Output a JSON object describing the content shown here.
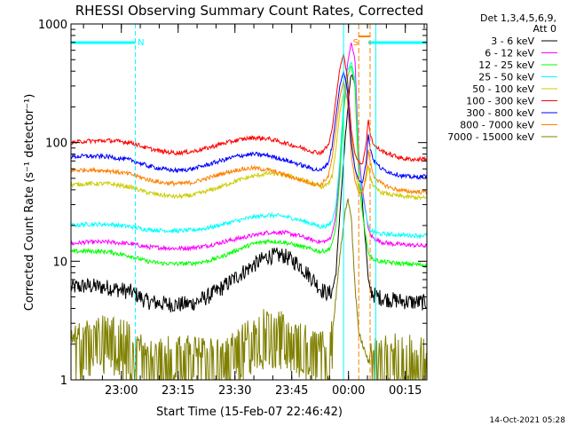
{
  "chart_data": {
    "type": "line",
    "title": "RHESSI Observing Summary Count Rates, Corrected",
    "xlabel": "Start Time (15-Feb-07 22:46:42)",
    "ylabel": "Corrected Count Rate (s⁻¹ detector⁻¹)",
    "y_scale": "log",
    "ylim": [
      1,
      1000
    ],
    "y_ticks": [
      {
        "value": 1,
        "label": "1"
      },
      {
        "value": 10,
        "label": "10"
      },
      {
        "value": 100,
        "label": "100"
      },
      {
        "value": 1000,
        "label": "1000"
      }
    ],
    "x_units": "minutes after 22:46:42",
    "xlim": [
      0,
      94
    ],
    "x_ticks": [
      {
        "value": 13.3,
        "label": "23:00"
      },
      {
        "value": 28.3,
        "label": "23:15"
      },
      {
        "value": 43.3,
        "label": "23:30"
      },
      {
        "value": 58.3,
        "label": "23:45"
      },
      {
        "value": 73.3,
        "label": "00:00"
      },
      {
        "value": 88.3,
        "label": "00:15"
      }
    ],
    "grid": false,
    "legend_position": "top-right, outside plot",
    "legend_header": [
      "Det 1,3,4,5,6,9,",
      "Att 0"
    ],
    "annotations": [
      {
        "text": "N",
        "x": 18.5,
        "type": "night interval boundary"
      },
      {
        "text": "S",
        "x": 75.2,
        "type": "SAA boundary"
      }
    ],
    "night_intervals": [
      [
        0,
        17
      ],
      [
        78.5,
        94
      ]
    ],
    "saa_markers": [
      76,
      79
    ],
    "series": [
      {
        "name": "3 - 6 keV",
        "color": "#000000",
        "x": [
          0,
          4,
          10,
          16,
          20,
          24,
          28,
          32,
          36,
          40,
          44,
          48,
          52,
          56,
          60,
          64,
          66,
          68,
          69,
          70,
          71,
          72,
          73,
          74,
          75,
          76,
          77,
          78,
          78.5,
          79,
          80,
          82,
          85,
          88,
          91,
          93.5
        ],
        "values": [
          6,
          6.2,
          6,
          5.5,
          4.6,
          4.4,
          4.3,
          4.4,
          5,
          6,
          7.5,
          9.2,
          11,
          11.2,
          9.5,
          7,
          5.8,
          5.3,
          5.6,
          8,
          25,
          70,
          180,
          380,
          320,
          80,
          30,
          12,
          7,
          5.8,
          5.2,
          4.9,
          4.7,
          4.6,
          4.5,
          4.5
        ]
      },
      {
        "name": "6 - 12 keV",
        "color": "#ff00ff",
        "x": [
          0,
          4,
          10,
          16,
          20,
          24,
          28,
          32,
          36,
          40,
          44,
          48,
          52,
          56,
          60,
          64,
          66,
          68,
          69,
          70,
          71,
          72,
          73,
          74,
          75,
          76,
          77,
          78,
          78.5,
          79,
          80,
          82,
          85,
          88,
          91,
          93.5
        ],
        "values": [
          14,
          14.5,
          14.5,
          14,
          13.2,
          13,
          12.8,
          13,
          13.5,
          14.5,
          15.5,
          16.5,
          17.5,
          17.5,
          16.5,
          15,
          14.5,
          15,
          17,
          25,
          60,
          200,
          450,
          700,
          500,
          80,
          40,
          24,
          19,
          17,
          15.5,
          14.5,
          14,
          13.8,
          13.6,
          13.5
        ]
      },
      {
        "name": "12 - 25 keV",
        "color": "#00ff00",
        "x": [
          0,
          4,
          10,
          16,
          20,
          24,
          28,
          32,
          36,
          40,
          44,
          48,
          52,
          56,
          60,
          64,
          66,
          68,
          69,
          70,
          71,
          72,
          73,
          74,
          75,
          76,
          77,
          78,
          78.5,
          79,
          80,
          82,
          85,
          88,
          91,
          93.5
        ],
        "values": [
          12,
          12.2,
          12,
          11,
          10,
          9.6,
          9.5,
          9.6,
          10,
          11,
          12.5,
          14,
          14.8,
          14.5,
          13.5,
          12.5,
          12,
          12.5,
          14,
          20,
          50,
          180,
          350,
          450,
          300,
          50,
          25,
          15,
          12,
          11,
          10.3,
          9.9,
          9.7,
          9.5,
          9.4,
          9.3
        ]
      },
      {
        "name": "25 - 50 keV",
        "color": "#00ffff",
        "x": [
          0,
          4,
          10,
          16,
          20,
          24,
          28,
          32,
          36,
          40,
          44,
          48,
          52,
          56,
          60,
          64,
          66,
          68,
          69,
          70,
          71,
          72,
          73,
          74,
          75,
          76,
          77,
          78,
          78.5,
          79,
          80,
          82,
          85,
          88,
          91,
          93.5
        ],
        "values": [
          20,
          20.5,
          20.5,
          19.5,
          18.5,
          18.2,
          18,
          18.3,
          19,
          20.5,
          22,
          23.5,
          24.5,
          24,
          22.5,
          20.5,
          19.5,
          20,
          22,
          30,
          70,
          220,
          400,
          480,
          350,
          70,
          35,
          24,
          20,
          18.5,
          17.5,
          17,
          16.8,
          16.6,
          16.5,
          16.5
        ]
      },
      {
        "name": "50 - 100 keV",
        "color": "#cccc00",
        "x": [
          0,
          4,
          10,
          16,
          20,
          24,
          28,
          32,
          36,
          40,
          44,
          48,
          52,
          56,
          60,
          64,
          66,
          68,
          69,
          70,
          71,
          72,
          73,
          74,
          75,
          76,
          77,
          78,
          78.5,
          79,
          80,
          82,
          85,
          88,
          91,
          93.5
        ],
        "values": [
          44,
          45,
          45,
          42,
          38,
          36,
          35,
          36,
          39,
          43,
          48,
          52,
          55,
          54,
          50,
          45,
          42,
          45,
          52,
          90,
          180,
          260,
          240,
          120,
          60,
          40,
          38,
          50,
          65,
          52,
          42,
          38,
          36,
          35,
          34.5,
          34
        ]
      },
      {
        "name": "100 - 300 keV",
        "color": "#ff0000",
        "x": [
          0,
          4,
          10,
          16,
          20,
          24,
          28,
          32,
          36,
          40,
          44,
          48,
          52,
          56,
          60,
          64,
          66,
          68,
          69,
          70,
          71,
          72,
          73,
          74,
          75,
          76,
          77,
          78,
          78.5,
          79,
          80,
          82,
          85,
          88,
          91,
          93.5
        ],
        "values": [
          100,
          103,
          104,
          100,
          90,
          84,
          82,
          84,
          90,
          98,
          105,
          110,
          108,
          100,
          92,
          84,
          82,
          95,
          130,
          240,
          420,
          560,
          350,
          130,
          80,
          68,
          66,
          100,
          160,
          120,
          95,
          85,
          78,
          73,
          72,
          73
        ]
      },
      {
        "name": "300 - 800 keV",
        "color": "#0000ff",
        "x": [
          0,
          4,
          10,
          16,
          20,
          24,
          28,
          32,
          36,
          40,
          44,
          48,
          52,
          56,
          60,
          64,
          66,
          68,
          69,
          70,
          71,
          72,
          73,
          74,
          75,
          76,
          77,
          78,
          78.5,
          79,
          80,
          82,
          85,
          88,
          91,
          93.5
        ],
        "values": [
          76,
          77,
          76,
          71,
          64,
          60,
          58,
          60,
          65,
          71,
          77,
          80,
          78,
          72,
          66,
          60,
          58,
          68,
          95,
          170,
          300,
          400,
          280,
          100,
          60,
          48,
          46,
          70,
          120,
          90,
          70,
          60,
          55,
          52,
          51,
          52
        ]
      },
      {
        "name": "800 - 7000 keV",
        "color": "#ff8000",
        "x": [
          0,
          4,
          10,
          16,
          20,
          24,
          28,
          32,
          36,
          40,
          44,
          48,
          52,
          56,
          60,
          64,
          66,
          68,
          69,
          70,
          71,
          72,
          73,
          74,
          75,
          76,
          77,
          78,
          78.5,
          79,
          80,
          82,
          85,
          88,
          91,
          93.5
        ],
        "values": [
          58,
          59,
          58,
          54,
          49,
          46,
          45,
          46,
          50,
          55,
          59,
          61,
          59,
          54,
          49,
          45,
          44,
          52,
          75,
          130,
          240,
          330,
          230,
          80,
          48,
          38,
          37,
          55,
          90,
          68,
          52,
          45,
          41,
          39,
          38.5,
          38.5
        ]
      },
      {
        "name": "7000 - 15000 keV",
        "color": "#808000",
        "x": [
          0,
          4,
          10,
          16,
          20,
          24,
          28,
          32,
          36,
          40,
          44,
          48,
          52,
          56,
          60,
          64,
          66,
          68,
          69,
          70,
          71,
          72,
          73,
          74,
          75,
          76,
          77,
          78,
          78.5,
          79,
          80,
          82,
          85,
          88,
          91,
          93.5
        ],
        "values": [
          1.7,
          2.1,
          2.3,
          1.9,
          1.4,
          1.4,
          1.6,
          1.5,
          1.4,
          1.5,
          1.8,
          2.2,
          2.6,
          2.5,
          2.0,
          1.7,
          1.6,
          1.8,
          2.5,
          5,
          11,
          20,
          35,
          25,
          6,
          2.5,
          2,
          1.6,
          1.4,
          1.5,
          1.4,
          1.5,
          1.6,
          1.5,
          1.5,
          1.4
        ]
      }
    ],
    "footer_date": "14-Oct-2021 05:28"
  }
}
